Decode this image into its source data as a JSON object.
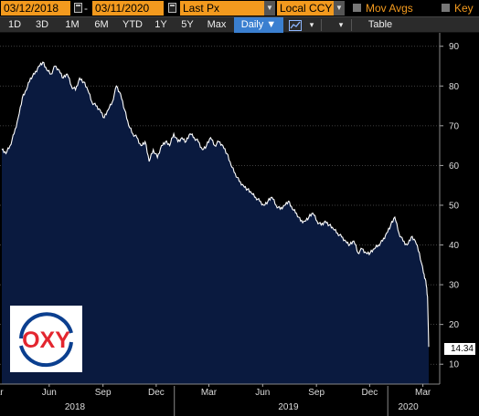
{
  "toolbar": {
    "start_date": "03/12/2018",
    "end_date": "03/11/2020",
    "price_field": "Last Px",
    "currency": "Local CCY",
    "mov_avgs_label": "Mov Avgs",
    "key_label": "Key",
    "periods": [
      "1D",
      "3D",
      "1M",
      "6M",
      "YTD",
      "1Y",
      "5Y",
      "Max"
    ],
    "frequency": "Daily ▼",
    "table_label": "Table"
  },
  "logo": {
    "text": "OXY"
  },
  "colors": {
    "accent": "#f39a1e",
    "area_fill": "#0a1a3f",
    "line": "#ffffff",
    "active_button": "#3a7fd0"
  },
  "chart_data": {
    "type": "area",
    "title": "",
    "xlabel": "",
    "ylabel": "",
    "ylim": [
      5,
      92
    ],
    "y_ticks": [
      10,
      20,
      30,
      40,
      50,
      60,
      70,
      80,
      90
    ],
    "x_tick_labels": [
      "Mar",
      "Jun",
      "Sep",
      "Dec",
      "Mar",
      "Jun",
      "Sep",
      "Dec",
      "Mar"
    ],
    "x_tick_dates": [
      "2018-03-01",
      "2018-06-01",
      "2018-09-01",
      "2018-12-01",
      "2019-03-01",
      "2019-06-01",
      "2019-09-01",
      "2019-12-01",
      "2020-03-01"
    ],
    "year_labels": [
      "2018",
      "2019",
      "2020"
    ],
    "year_label_dates": [
      "2018-07-15",
      "2019-07-15",
      "2020-02-05"
    ],
    "year_separator_dates": [
      "2019-01-01",
      "2020-01-01"
    ],
    "last_value": "14.34",
    "series": [
      {
        "x": [
          "2018-03-12",
          "2018-03-19",
          "2018-03-26",
          "2018-04-02",
          "2018-04-09",
          "2018-04-16",
          "2018-04-23",
          "2018-04-30",
          "2018-05-07",
          "2018-05-14",
          "2018-05-21",
          "2018-05-28",
          "2018-06-04",
          "2018-06-11",
          "2018-06-18",
          "2018-06-25",
          "2018-07-02",
          "2018-07-09",
          "2018-07-16",
          "2018-07-23",
          "2018-07-30",
          "2018-08-06",
          "2018-08-13",
          "2018-08-20",
          "2018-08-27",
          "2018-09-03",
          "2018-09-10",
          "2018-09-17",
          "2018-09-24",
          "2018-10-01",
          "2018-10-08",
          "2018-10-15",
          "2018-10-22",
          "2018-10-29",
          "2018-11-05",
          "2018-11-12",
          "2018-11-19",
          "2018-11-26",
          "2018-12-03",
          "2018-12-10",
          "2018-12-17",
          "2018-12-24",
          "2018-12-31",
          "2019-01-07",
          "2019-01-14",
          "2019-01-21",
          "2019-01-28",
          "2019-02-04",
          "2019-02-11",
          "2019-02-18",
          "2019-02-25",
          "2019-03-04",
          "2019-03-11",
          "2019-03-18",
          "2019-03-25",
          "2019-04-01",
          "2019-04-08",
          "2019-04-15",
          "2019-04-22",
          "2019-04-29",
          "2019-05-06",
          "2019-05-13",
          "2019-05-20",
          "2019-05-27",
          "2019-06-03",
          "2019-06-10",
          "2019-06-17",
          "2019-06-24",
          "2019-07-01",
          "2019-07-08",
          "2019-07-15",
          "2019-07-22",
          "2019-07-29",
          "2019-08-05",
          "2019-08-12",
          "2019-08-19",
          "2019-08-26",
          "2019-09-02",
          "2019-09-09",
          "2019-09-16",
          "2019-09-23",
          "2019-09-30",
          "2019-10-07",
          "2019-10-14",
          "2019-10-21",
          "2019-10-28",
          "2019-11-04",
          "2019-11-11",
          "2019-11-18",
          "2019-11-25",
          "2019-12-02",
          "2019-12-09",
          "2019-12-16",
          "2019-12-23",
          "2019-12-30",
          "2020-01-06",
          "2020-01-13",
          "2020-01-20",
          "2020-01-27",
          "2020-02-03",
          "2020-02-10",
          "2020-02-17",
          "2020-02-24",
          "2020-03-02",
          "2020-03-06",
          "2020-03-09",
          "2020-03-11"
        ],
        "y": [
          64,
          63,
          65,
          68,
          72,
          77,
          79,
          82,
          83,
          85,
          86,
          84,
          83,
          85,
          84,
          82,
          83,
          80,
          79,
          82,
          81,
          79,
          76,
          75,
          74,
          72,
          74,
          76,
          80,
          78,
          74,
          70,
          68,
          67,
          65,
          66,
          61,
          64,
          62,
          65,
          66,
          65,
          68,
          66,
          67,
          66,
          68,
          67,
          66,
          64,
          65,
          67,
          65,
          66,
          65,
          63,
          60,
          58,
          56,
          55,
          54,
          53,
          52,
          51,
          50,
          51,
          52,
          50,
          49,
          50,
          51,
          49,
          48,
          46,
          46,
          47,
          48,
          46,
          45,
          46,
          45,
          44,
          43,
          42,
          41,
          40,
          41,
          38,
          39,
          38,
          38,
          39,
          40,
          41,
          43,
          45,
          47,
          43,
          41,
          40,
          42,
          41,
          38,
          33,
          31,
          27,
          14.34
        ]
      }
    ]
  }
}
